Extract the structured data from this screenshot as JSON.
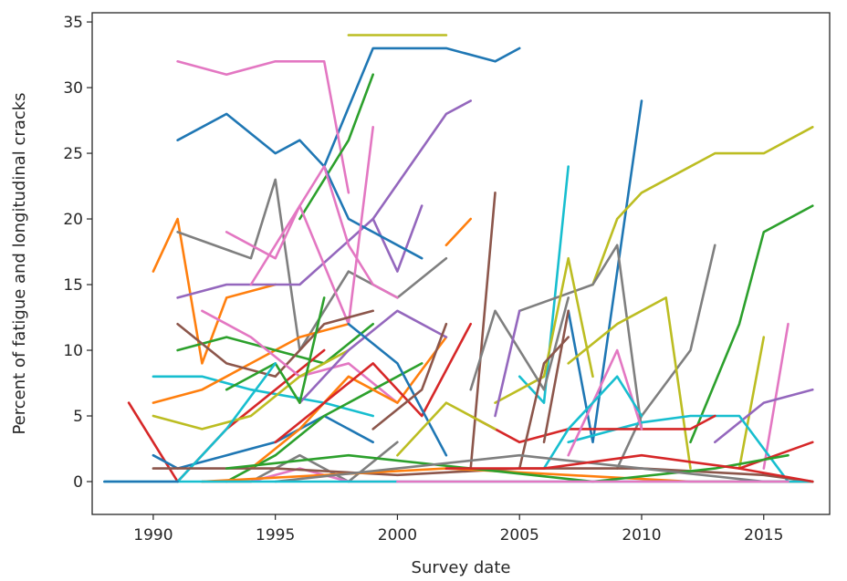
{
  "chart_data": {
    "type": "line",
    "title": "",
    "xlabel": "Survey date",
    "ylabel": "Percent of fatigue and longitudinal cracks",
    "xlim": [
      1987.5,
      2017.7
    ],
    "ylim": [
      -2.5,
      35.7
    ],
    "xticks": [
      1990,
      1995,
      2000,
      2005,
      2010,
      2015
    ],
    "yticks": [
      0,
      5,
      10,
      15,
      20,
      25,
      30,
      35
    ],
    "grid": false,
    "legend": "none",
    "palette": [
      "#1f77b4",
      "#ff7f0e",
      "#2ca02c",
      "#d62728",
      "#9467bd",
      "#8c564b",
      "#e377c2",
      "#7f7f7f",
      "#bcbd22",
      "#17becf"
    ],
    "series": [
      {
        "x": [
          1991,
          1993,
          1995,
          1996,
          1997,
          1999,
          2002,
          2004,
          2005
        ],
        "y": [
          26,
          28,
          25,
          26,
          24,
          33,
          33,
          32,
          33
        ],
        "color": "#1f77b4"
      },
      {
        "x": [
          1998,
          2002
        ],
        "y": [
          34,
          34
        ],
        "color": "#bcbd22"
      },
      {
        "x": [
          1991,
          1993,
          1995,
          1997,
          1998
        ],
        "y": [
          32,
          31,
          32,
          32,
          22
        ],
        "color": "#e377c2"
      },
      {
        "x": [
          1996,
          1998,
          1999
        ],
        "y": [
          20,
          26,
          31
        ],
        "color": "#2ca02c"
      },
      {
        "x": [
          1999,
          2002,
          2003
        ],
        "y": [
          20,
          28,
          29
        ],
        "color": "#9467bd"
      },
      {
        "x": [
          1990,
          1991,
          1992,
          1993,
          1995
        ],
        "y": [
          16,
          20,
          9,
          14,
          15
        ],
        "color": "#ff7f0e"
      },
      {
        "x": [
          1991,
          1994,
          1995,
          1996,
          1998,
          2000,
          2002
        ],
        "y": [
          19,
          17,
          23,
          10,
          16,
          14,
          17
        ],
        "color": "#7f7f7f"
      },
      {
        "x": [
          1991,
          1993,
          1996,
          1999,
          2000,
          2001
        ],
        "y": [
          14,
          15,
          15,
          20,
          16,
          21
        ],
        "color": "#9467bd"
      },
      {
        "x": [
          1997,
          1998,
          1999,
          2001
        ],
        "y": [
          24,
          20,
          19,
          17
        ],
        "color": "#1f77b4"
      },
      {
        "x": [
          1994,
          1997,
          1998,
          1999,
          2000
        ],
        "y": [
          15,
          24,
          18,
          15,
          14
        ],
        "color": "#e377c2"
      },
      {
        "x": [
          1993,
          1995,
          1996,
          1998,
          1999
        ],
        "y": [
          19,
          17,
          21,
          12,
          27
        ],
        "color": "#e377c2"
      },
      {
        "x": [
          2002,
          2003
        ],
        "y": [
          18,
          20
        ],
        "color": "#ff7f0e"
      },
      {
        "x": [
          2003,
          2004
        ],
        "y": [
          1,
          22
        ],
        "color": "#8c564b"
      },
      {
        "x": [
          2005,
          2006,
          2007
        ],
        "y": [
          8,
          6,
          24
        ],
        "color": "#17becf"
      },
      {
        "x": [
          2007,
          2008,
          2010
        ],
        "y": [
          13,
          3,
          29
        ],
        "color": "#1f77b4"
      },
      {
        "x": [
          2008,
          2009,
          2010,
          2013,
          2015,
          2017
        ],
        "y": [
          15,
          20,
          22,
          25,
          25,
          27
        ],
        "color": "#bcbd22"
      },
      {
        "x": [
          2012,
          2014,
          2015,
          2017
        ],
        "y": [
          3,
          12,
          19,
          21
        ],
        "color": "#2ca02c"
      },
      {
        "x": [
          2009,
          2010,
          2012,
          2013
        ],
        "y": [
          1,
          5,
          10,
          18
        ],
        "color": "#7f7f7f"
      },
      {
        "x": [
          2005,
          2008,
          2009,
          2010
        ],
        "y": [
          13,
          15,
          18,
          4
        ],
        "color": "#7f7f7f"
      },
      {
        "x": [
          2007,
          2009,
          2011,
          2012
        ],
        "y": [
          9,
          12,
          14,
          1
        ],
        "color": "#bcbd22"
      },
      {
        "x": [
          2004,
          2006,
          2007,
          2008
        ],
        "y": [
          6,
          8,
          17,
          8
        ],
        "color": "#bcbd22"
      },
      {
        "x": [
          2014,
          2015
        ],
        "y": [
          1,
          11
        ],
        "color": "#bcbd22"
      },
      {
        "x": [
          2015,
          2016
        ],
        "y": [
          1,
          12
        ],
        "color": "#e377c2"
      },
      {
        "x": [
          2013,
          2015,
          2017
        ],
        "y": [
          3,
          6,
          7
        ],
        "color": "#9467bd"
      },
      {
        "x": [
          2007,
          2009,
          2010,
          2012,
          2014,
          2016
        ],
        "y": [
          3,
          4,
          4.5,
          5,
          5,
          0
        ],
        "color": "#17becf"
      },
      {
        "x": [
          2003,
          2005,
          2007,
          2010,
          2012,
          2013
        ],
        "y": [
          5,
          3,
          4,
          4,
          4,
          5
        ],
        "color": "#d62728"
      },
      {
        "x": [
          2014,
          2017
        ],
        "y": [
          1,
          3
        ],
        "color": "#d62728"
      },
      {
        "x": [
          2007,
          2008,
          2009,
          2010
        ],
        "y": [
          2,
          6,
          10,
          4
        ],
        "color": "#e377c2"
      },
      {
        "x": [
          2006,
          2007,
          2009,
          2010
        ],
        "y": [
          1,
          4,
          8,
          5
        ],
        "color": "#17becf"
      },
      {
        "x": [
          2003,
          2004,
          2006,
          2007
        ],
        "y": [
          7,
          13,
          7,
          14
        ],
        "color": "#7f7f7f"
      },
      {
        "x": [
          2005,
          2006,
          2007
        ],
        "y": [
          1,
          9,
          11
        ],
        "color": "#8c564b"
      },
      {
        "x": [
          2006,
          2007
        ],
        "y": [
          3,
          13
        ],
        "color": "#8c564b"
      },
      {
        "x": [
          2004,
          2005
        ],
        "y": [
          5,
          13
        ],
        "color": "#9467bd"
      },
      {
        "x": [
          1990,
          1992,
          1994,
          1997,
          1999
        ],
        "y": [
          8,
          8,
          7,
          6,
          5
        ],
        "color": "#17becf"
      },
      {
        "x": [
          1990,
          1992,
          1994,
          1996,
          1998
        ],
        "y": [
          6,
          7,
          9,
          11,
          12
        ],
        "color": "#ff7f0e"
      },
      {
        "x": [
          1991,
          1993,
          1995,
          1997,
          1999
        ],
        "y": [
          10,
          11,
          10,
          9,
          12
        ],
        "color": "#2ca02c"
      },
      {
        "x": [
          1989,
          1991,
          1993,
          1995,
          1997
        ],
        "y": [
          6,
          0,
          4,
          7,
          10
        ],
        "color": "#d62728"
      },
      {
        "x": [
          1991,
          1993,
          1995,
          1997,
          1999
        ],
        "y": [
          12,
          9,
          8,
          12,
          13
        ],
        "color": "#8c564b"
      },
      {
        "x": [
          1992,
          1994,
          1996,
          1998,
          2000
        ],
        "y": [
          13,
          11,
          8,
          9,
          6
        ],
        "color": "#e377c2"
      },
      {
        "x": [
          1990,
          1992,
          1994,
          1996,
          1998
        ],
        "y": [
          5,
          4,
          5,
          8,
          10
        ],
        "color": "#bcbd22"
      },
      {
        "x": [
          1990,
          1991,
          1993,
          1995,
          1997,
          1999
        ],
        "y": [
          2,
          1,
          2,
          3,
          5,
          3
        ],
        "color": "#1f77b4"
      },
      {
        "x": [
          1993,
          1995,
          1997,
          1999,
          2001
        ],
        "y": [
          0,
          2,
          5,
          7,
          9
        ],
        "color": "#2ca02c"
      },
      {
        "x": [
          1994,
          1996,
          1998,
          2000,
          2002
        ],
        "y": [
          1,
          4,
          8,
          6,
          11
        ],
        "color": "#ff7f0e"
      },
      {
        "x": [
          1992,
          1994,
          1996,
          1998,
          2000
        ],
        "y": [
          0,
          0,
          2,
          0,
          3
        ],
        "color": "#7f7f7f"
      },
      {
        "x": [
          1995,
          1997,
          1999,
          2001,
          2003
        ],
        "y": [
          3,
          6,
          9,
          5,
          12
        ],
        "color": "#d62728"
      },
      {
        "x": [
          1996,
          1998,
          2000,
          2002
        ],
        "y": [
          6,
          10,
          13,
          11
        ],
        "color": "#9467bd"
      },
      {
        "x": [
          1998,
          2000,
          2002
        ],
        "y": [
          12,
          9,
          2
        ],
        "color": "#1f77b4"
      },
      {
        "x": [
          1999,
          2001,
          2002
        ],
        "y": [
          4,
          7,
          12
        ],
        "color": "#8c564b"
      },
      {
        "x": [
          2000,
          2002,
          2004
        ],
        "y": [
          2,
          6,
          4
        ],
        "color": "#bcbd22"
      },
      {
        "x": [
          1993,
          1995,
          1996,
          1997
        ],
        "y": [
          7,
          9,
          6,
          14
        ],
        "color": "#2ca02c"
      },
      {
        "x": [
          1991,
          1993,
          1995
        ],
        "y": [
          0,
          4,
          9
        ],
        "color": "#17becf"
      },
      {
        "x": [
          1994,
          1996,
          1998,
          2000
        ],
        "y": [
          0,
          1,
          0,
          0
        ],
        "color": "#e377c2"
      },
      {
        "x": [
          1990,
          1995,
          2000,
          2005,
          2010,
          2015,
          2017
        ],
        "y": [
          1,
          1,
          0.5,
          1,
          1,
          0.5,
          0
        ],
        "color": "#8c564b"
      },
      {
        "x": [
          1992,
          1997,
          2002,
          2007,
          2012,
          2017
        ],
        "y": [
          0,
          0.5,
          1,
          0.5,
          0,
          0
        ],
        "color": "#ff7f0e"
      },
      {
        "x": [
          1993,
          1998,
          2003,
          2008,
          2013,
          2016
        ],
        "y": [
          1,
          2,
          1,
          0,
          1,
          2
        ],
        "color": "#2ca02c"
      },
      {
        "x": [
          1995,
          2000,
          2005,
          2010,
          2015,
          2017
        ],
        "y": [
          0,
          1,
          2,
          1,
          0,
          0
        ],
        "color": "#7f7f7f"
      },
      {
        "x": [
          1988,
          1990,
          1995,
          2000,
          2005,
          2010,
          2015,
          2017
        ],
        "y": [
          0,
          0,
          0,
          0,
          0,
          0,
          0,
          0
        ],
        "color": "#17becf"
      },
      {
        "x": [
          1988,
          1991
        ],
        "y": [
          0,
          0
        ],
        "color": "#1f77b4"
      },
      {
        "x": [
          2000,
          2004,
          2008,
          2012,
          2016
        ],
        "y": [
          0,
          0,
          0,
          0,
          0
        ],
        "color": "#e377c2"
      },
      {
        "x": [
          2002,
          2006,
          2010,
          2014,
          2017
        ],
        "y": [
          1,
          1,
          2,
          1,
          0
        ],
        "color": "#d62728"
      }
    ]
  }
}
